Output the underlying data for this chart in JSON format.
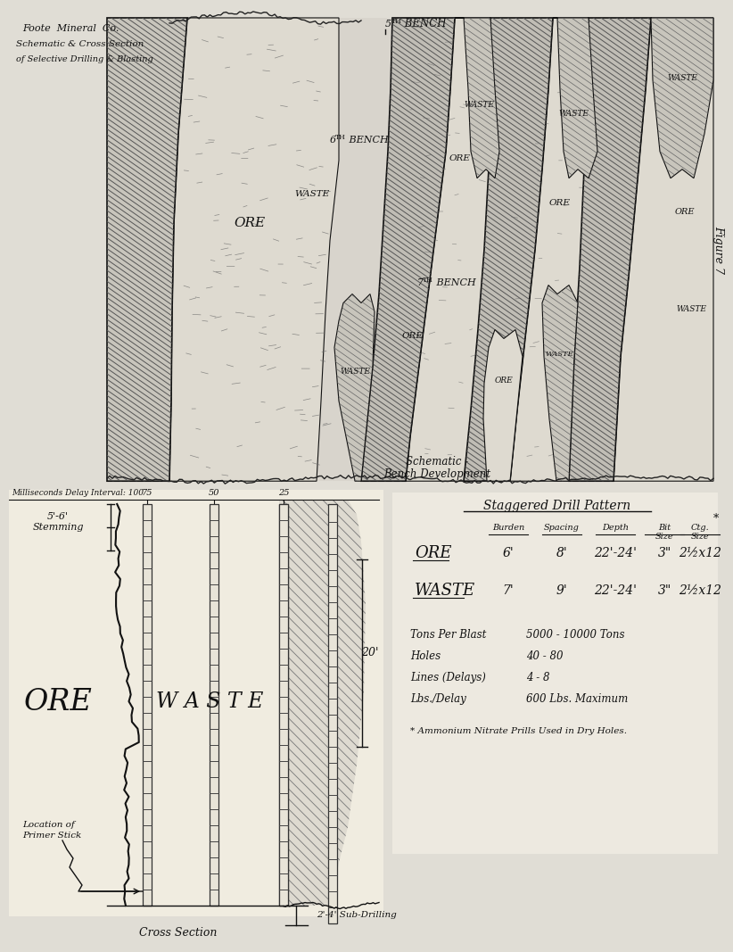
{
  "bg_color": "#e0ddd5",
  "line_color": "#111111",
  "fig_label": "Figure 7",
  "title_lines": [
    "Foote  Mineral  Co.",
    "Schematic & Cross Section",
    "of Selective Drilling & Blasting"
  ],
  "schematic_bottom_label": [
    "Schematic -",
    "Bench Development"
  ],
  "cross_section_label": "Cross Section",
  "ms_label": "Milliseconds Delay Interval: 100",
  "delay_numbers": [
    [
      "100",
      5
    ],
    [
      "75",
      158
    ],
    [
      "50",
      238
    ],
    [
      "25",
      316
    ]
  ],
  "stemming": "5'-6'\nStemming",
  "subdrilling": "2'-4' Sub-Drilling",
  "primer": "Location of\nPrimer Stick",
  "dim_20": "20'",
  "table_title": "Staggered Drill Pattern",
  "col_headers": [
    "Burden",
    "Spacing",
    "Depth",
    "Bit\nSize",
    "Ctg.\nSize"
  ],
  "ore_row": [
    "ORE",
    "6'",
    "8'",
    "22'-24'",
    "3\"",
    "2½x12"
  ],
  "waste_row": [
    "WASTE",
    "7'",
    "9'",
    "22'-24'",
    "3\"",
    "2½x12"
  ],
  "stats_labels": [
    "Tons Per Blast",
    "Holes",
    "Lines (Delays)",
    "Lbs./Delay"
  ],
  "stats_values": [
    "5000 - 10000 Tons",
    "40 - 80",
    "4 - 8",
    "600 Lbs. Maximum"
  ],
  "footnote": "* Ammonium Nitrate Prills Used in Dry Holes.",
  "bench5_label": [
    "5",
    "TH",
    " BENCH"
  ],
  "bench6_label": [
    "6",
    "TH",
    " BENCH"
  ],
  "bench7_label": [
    "7",
    "TH",
    " BENCH"
  ]
}
